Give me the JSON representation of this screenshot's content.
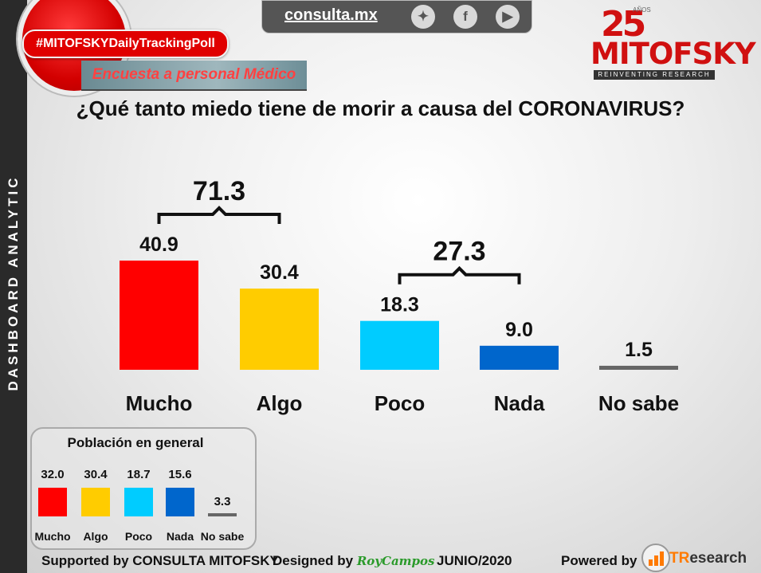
{
  "sidebar": {
    "label": "DASHBOARD ANALYTIC"
  },
  "topbar": {
    "site": "consulta.mx",
    "icons": [
      "twitter-icon",
      "facebook-icon",
      "youtube-icon"
    ]
  },
  "header": {
    "hashtag": "#MITOFSKYDailyTrackingPoll",
    "subtitle": "Encuesta a personal Médico"
  },
  "logo": {
    "number": "25",
    "anos": "AÑOS",
    "name": "MITOFSKY",
    "tagline": "REINVENTING RESEARCH"
  },
  "question": "¿Qué tanto miedo tiene de morir a causa del CORONAVIRUS?",
  "colors": {
    "mucho": "#ff0000",
    "algo": "#ffcc00",
    "poco": "#00ccff",
    "nada": "#0066cc",
    "nosabe": "#666666"
  },
  "chart_data": [
    {
      "type": "bar",
      "categories": [
        "Mucho",
        "Algo",
        "Poco",
        "Nada",
        "No sabe"
      ],
      "values": [
        40.9,
        30.4,
        18.3,
        9.0,
        1.5
      ],
      "value_labels": [
        "40.9",
        "30.4",
        "18.3",
        "9.0",
        "1.5"
      ],
      "groups": [
        {
          "label": "71.3",
          "from": 0,
          "to": 1
        },
        {
          "label": "27.3",
          "from": 2,
          "to": 3
        }
      ]
    },
    {
      "type": "bar",
      "title": "Población en general",
      "categories": [
        "Mucho",
        "Algo",
        "Poco",
        "Nada",
        "No sabe"
      ],
      "values": [
        32.0,
        30.4,
        18.7,
        15.6,
        3.3
      ],
      "value_labels": [
        "32.0",
        "30.4",
        "18.7",
        "15.6",
        "3.3"
      ]
    }
  ],
  "footer": {
    "supported": "Supported by  CONSULTA  MITOFSKY",
    "designed": "Designed by",
    "designer": "RoyCampos",
    "date": "JUNIO/2020",
    "powered": "Powered by",
    "brand_a": "TR",
    "brand_b": "esearch"
  }
}
